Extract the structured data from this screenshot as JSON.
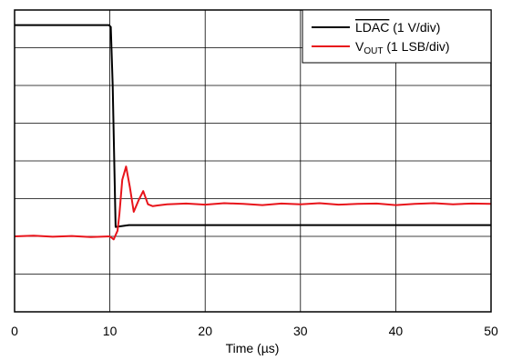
{
  "chart_data": {
    "type": "line",
    "xlabel": "Time (µs)",
    "xlim": [
      0,
      50
    ],
    "x_ticks": [
      "0",
      "10",
      "20",
      "30",
      "40",
      "50"
    ],
    "y_divisions": 8,
    "ylim": [
      0,
      8
    ],
    "grid": true,
    "legend_position": "top-right",
    "legend": [
      {
        "label_main": "LDAC",
        "label_suffix": " (1 V/div)",
        "overline": true,
        "color": "#000000"
      },
      {
        "label_main": "V",
        "label_sub": "OUT",
        "label_suffix": " (1 LSB/div)",
        "color": "#e8141b"
      }
    ],
    "series": [
      {
        "name": "LDAC (1 V/div)",
        "color": "#000000",
        "x": [
          0,
          9.9,
          10.1,
          10.3,
          10.6,
          12,
          20,
          30,
          40,
          50
        ],
        "y": [
          7.6,
          7.6,
          7.55,
          6.0,
          2.25,
          2.3,
          2.3,
          2.3,
          2.3,
          2.3
        ]
      },
      {
        "name": "VOUT (1 LSB/div)",
        "color": "#e8141b",
        "x": [
          0,
          2,
          4,
          6,
          8,
          10,
          10.4,
          10.8,
          11.0,
          11.3,
          11.7,
          12.1,
          12.5,
          13.0,
          13.5,
          14.0,
          14.5,
          15,
          16,
          18,
          20,
          22,
          24,
          26,
          28,
          30,
          32,
          34,
          36,
          38,
          40,
          42,
          44,
          46,
          48,
          50
        ],
        "y": [
          2.0,
          2.02,
          1.99,
          2.01,
          1.98,
          2.0,
          1.92,
          2.15,
          2.6,
          3.5,
          3.85,
          3.3,
          2.65,
          2.95,
          3.2,
          2.85,
          2.8,
          2.82,
          2.85,
          2.87,
          2.84,
          2.88,
          2.86,
          2.83,
          2.87,
          2.85,
          2.88,
          2.84,
          2.86,
          2.87,
          2.83,
          2.86,
          2.88,
          2.85,
          2.87,
          2.86
        ]
      }
    ]
  }
}
